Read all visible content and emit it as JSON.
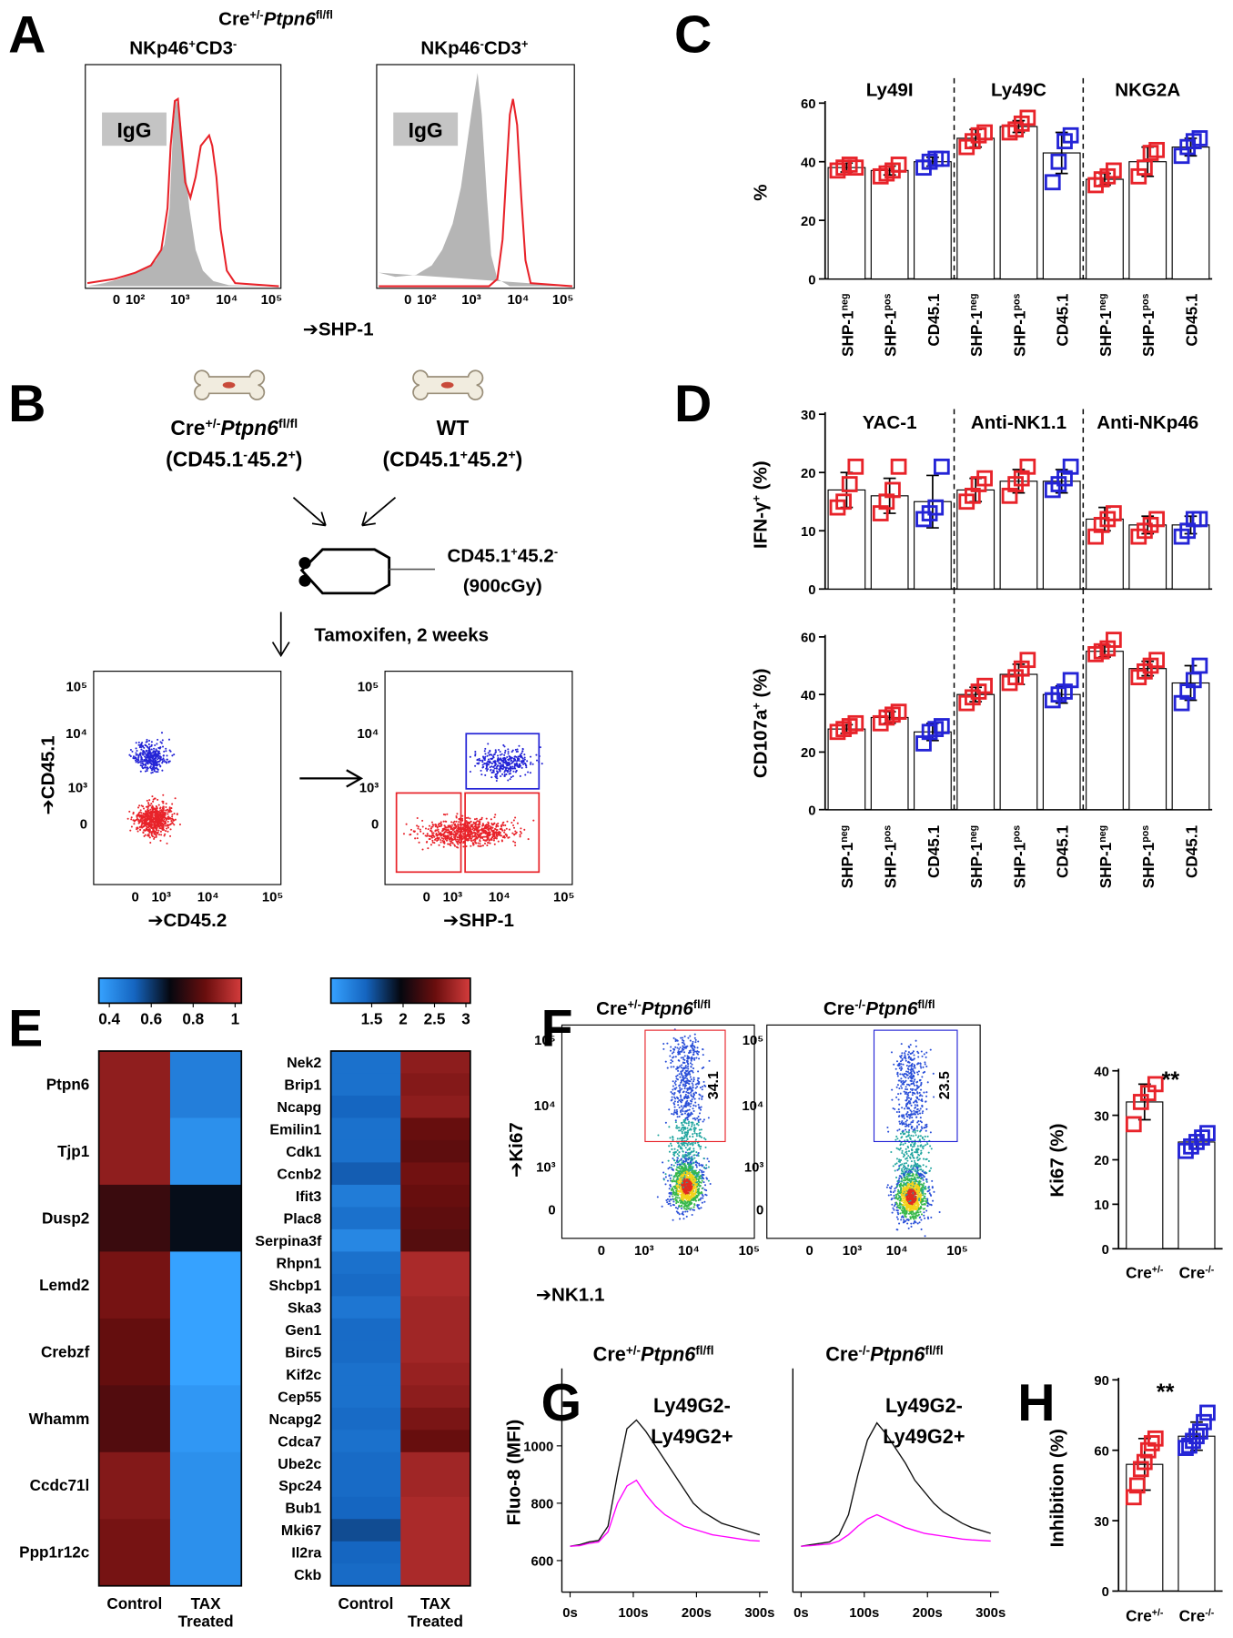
{
  "panels": {
    "letters": [
      "A",
      "B",
      "C",
      "D",
      "E",
      "F",
      "G",
      "H"
    ],
    "A": {
      "genotype": [
        {
          "text": "Cre"
        },
        {
          "text": "+/-",
          "sup": true
        },
        {
          "text": "Ptpn6",
          "it": true
        },
        {
          "text": "fl/fl",
          "sup": true
        }
      ],
      "titles": [
        [
          {
            "text": "NKp46"
          },
          {
            "text": "+",
            "sup": true
          },
          {
            "text": "CD3"
          },
          {
            "text": "-",
            "sup": true
          }
        ],
        [
          {
            "text": "NKp46"
          },
          {
            "text": "-",
            "sup": true
          },
          {
            "text": "CD3"
          },
          {
            "text": "+",
            "sup": true
          }
        ]
      ],
      "control": "IgG",
      "xticks": [
        "0",
        "10²",
        "10³",
        "10⁴",
        "10⁵"
      ],
      "xlabel": "➔SHP-1"
    },
    "B": {
      "donor1": [
        {
          "text": "Cre"
        },
        {
          "text": "+/-",
          "sup": true
        },
        {
          "text": "Ptpn6",
          "it": true
        },
        {
          "text": "fl/fl",
          "sup": true
        }
      ],
      "donor1_cd": [
        {
          "text": "(CD45.1"
        },
        {
          "text": "-",
          "sup": true
        },
        {
          "text": "45.2"
        },
        {
          "text": "+",
          "sup": true
        },
        {
          "text": ")"
        }
      ],
      "donor2": "WT",
      "donor2_cd": [
        {
          "text": "(CD45.1"
        },
        {
          "text": "+",
          "sup": true
        },
        {
          "text": "45.2"
        },
        {
          "text": "+",
          "sup": true
        },
        {
          "text": ")"
        }
      ],
      "recipient": [
        {
          "text": "CD45.1"
        },
        {
          "text": "+",
          "sup": true
        },
        {
          "text": "45.2"
        },
        {
          "text": "-",
          "sup": true
        }
      ],
      "dose": "(900cGy)",
      "treatment": "Tamoxifen, 2 weeks",
      "yticks": [
        "10⁵",
        "10⁴",
        "10³",
        "0"
      ],
      "xticks": [
        "0",
        "10³",
        "10⁴",
        "10⁵"
      ],
      "ylabel": "➔CD45.1",
      "xlabels": [
        "➔CD45.2",
        "➔SHP-1"
      ]
    },
    "F": {
      "titles": [
        [
          {
            "text": "Cre"
          },
          {
            "text": "+/-",
            "sup": true
          },
          {
            "text": "Ptpn6",
            "it": true
          },
          {
            "text": "fl/fl",
            "sup": true
          }
        ],
        [
          {
            "text": "Cre"
          },
          {
            "text": "-/-",
            "sup": true
          },
          {
            "text": "Ptpn6",
            "it": true
          },
          {
            "text": "fl/fl",
            "sup": true
          }
        ]
      ],
      "gates": [
        34.1,
        23.5
      ],
      "yticks": [
        "10⁵",
        "10⁴",
        "10³",
        "0"
      ],
      "xticks": [
        "0",
        "10³",
        "10⁴",
        "10⁵"
      ],
      "ylabel": "➔Ki67",
      "xlabel": "➔NK1.1"
    }
  },
  "chart_data": [
    {
      "type": "dotbar",
      "groups": [
        "Ly49I",
        "Ly49C",
        "NKG2A"
      ],
      "categories": [
        [
          {
            "text": "SHP-1"
          },
          {
            "text": "neg",
            "sup": true
          }
        ],
        [
          {
            "text": "SHP-1"
          },
          {
            "text": "pos",
            "sup": true
          }
        ],
        [
          {
            "text": "CD45.1"
          }
        ],
        [
          {
            "text": "SHP-1"
          },
          {
            "text": "neg",
            "sup": true
          }
        ],
        [
          {
            "text": "SHP-1"
          },
          {
            "text": "pos",
            "sup": true
          }
        ],
        [
          {
            "text": "CD45.1"
          }
        ],
        [
          {
            "text": "SHP-1"
          },
          {
            "text": "neg",
            "sup": true
          }
        ],
        [
          {
            "text": "SHP-1"
          },
          {
            "text": "pos",
            "sup": true
          }
        ],
        [
          {
            "text": "CD45.1"
          }
        ]
      ],
      "colors": [
        "#e8232a",
        "#e8232a",
        "#2424d6",
        "#e8232a",
        "#e8232a",
        "#2424d6",
        "#e8232a",
        "#e8232a",
        "#2424d6"
      ],
      "means": [
        38,
        37,
        40,
        48,
        52,
        43,
        34,
        40,
        45
      ],
      "errors": [
        1.5,
        1.5,
        1.5,
        3,
        2,
        7,
        2,
        5,
        3
      ],
      "points": [
        [
          37,
          38,
          39,
          38
        ],
        [
          35,
          36,
          37,
          39
        ],
        [
          38,
          40,
          41,
          41
        ],
        [
          45,
          47,
          49,
          50
        ],
        [
          50,
          51,
          53,
          55
        ],
        [
          33,
          40,
          47,
          49
        ],
        [
          32,
          34,
          35,
          37
        ],
        [
          35,
          38,
          43,
          44
        ],
        [
          42,
          45,
          47,
          48
        ]
      ],
      "ylabel": [
        {
          "text": "%"
        }
      ],
      "ylim": [
        0,
        60
      ],
      "yticks": [
        0,
        20,
        40,
        60
      ]
    },
    {
      "type": "dotbar",
      "groups": [
        "YAC-1",
        "Anti-NK1.1",
        "Anti-NKp46"
      ],
      "colors": [
        "#e8232a",
        "#e8232a",
        "#2424d6",
        "#e8232a",
        "#e8232a",
        "#2424d6",
        "#e8232a",
        "#e8232a",
        "#2424d6"
      ],
      "means": [
        17,
        16,
        15,
        17,
        18.5,
        18.5,
        12,
        11,
        11
      ],
      "errors": [
        3,
        3,
        4.5,
        2,
        2,
        2,
        2,
        1.5,
        1.5
      ],
      "points": [
        [
          14,
          15,
          18,
          21
        ],
        [
          13,
          15,
          17,
          21
        ],
        [
          12,
          13,
          14,
          21
        ],
        [
          15,
          16,
          18,
          19
        ],
        [
          16,
          18,
          19,
          21
        ],
        [
          17,
          18,
          19,
          21
        ],
        [
          9,
          11,
          12,
          13
        ],
        [
          9,
          10,
          11,
          12
        ],
        [
          9,
          10,
          12,
          12
        ]
      ],
      "ylabel": [
        {
          "text": "IFN-γ"
        },
        {
          "text": "+",
          "sup": true
        },
        {
          "text": " (%)"
        }
      ],
      "ylim": [
        0,
        30
      ],
      "yticks": [
        0,
        10,
        20,
        30
      ]
    },
    {
      "type": "dotbar",
      "categories": [
        [
          {
            "text": "SHP-1"
          },
          {
            "text": "neg",
            "sup": true
          }
        ],
        [
          {
            "text": "SHP-1"
          },
          {
            "text": "pos",
            "sup": true
          }
        ],
        [
          {
            "text": "CD45.1"
          }
        ],
        [
          {
            "text": "SHP-1"
          },
          {
            "text": "neg",
            "sup": true
          }
        ],
        [
          {
            "text": "SHP-1"
          },
          {
            "text": "pos",
            "sup": true
          }
        ],
        [
          {
            "text": "CD45.1"
          }
        ],
        [
          {
            "text": "SHP-1"
          },
          {
            "text": "neg",
            "sup": true
          }
        ],
        [
          {
            "text": "SHP-1"
          },
          {
            "text": "pos",
            "sup": true
          }
        ],
        [
          {
            "text": "CD45.1"
          }
        ]
      ],
      "colors": [
        "#e8232a",
        "#e8232a",
        "#2424d6",
        "#e8232a",
        "#e8232a",
        "#2424d6",
        "#e8232a",
        "#e8232a",
        "#2424d6"
      ],
      "means": [
        28,
        32,
        27,
        40,
        47,
        40,
        55,
        49,
        44
      ],
      "errors": [
        1.5,
        2,
        3,
        2.5,
        3.5,
        3,
        2,
        2.5,
        6
      ],
      "points": [
        [
          27,
          28,
          29,
          30
        ],
        [
          30,
          32,
          33,
          34
        ],
        [
          23,
          27,
          28,
          29
        ],
        [
          37,
          39,
          41,
          43
        ],
        [
          44,
          46,
          49,
          52
        ],
        [
          38,
          40,
          41,
          45
        ],
        [
          54,
          55,
          56,
          59
        ],
        [
          46,
          48,
          50,
          52
        ],
        [
          37,
          41,
          45,
          50
        ]
      ],
      "ylabel": [
        {
          "text": "CD107a"
        },
        {
          "text": "+",
          "sup": true
        },
        {
          "text": " (%)"
        }
      ],
      "ylim": [
        0,
        60
      ],
      "yticks": [
        0,
        20,
        40,
        60
      ]
    },
    {
      "type": "dotbar",
      "categories": [
        [
          {
            "text": "Cre"
          },
          {
            "text": "+/-",
            "sup": true
          }
        ],
        [
          {
            "text": "Cre"
          },
          {
            "text": "-/-",
            "sup": true
          }
        ]
      ],
      "colors": [
        "#e8232a",
        "#2424d6"
      ],
      "means": [
        33,
        24
      ],
      "errors": [
        4,
        1.5
      ],
      "points": [
        [
          28,
          33,
          35,
          37
        ],
        [
          22,
          23,
          24,
          25,
          26
        ]
      ],
      "ylabel": [
        {
          "text": "Ki67 (%)"
        }
      ],
      "annotation": "**",
      "ylim": [
        0,
        40
      ],
      "yticks": [
        0,
        10,
        20,
        30,
        40
      ]
    },
    {
      "type": "dotbar",
      "categories": [
        [
          {
            "text": "Cre"
          },
          {
            "text": "+/-",
            "sup": true
          }
        ],
        [
          {
            "text": "Cre"
          },
          {
            "text": "-/-",
            "sup": true
          }
        ]
      ],
      "colors": [
        "#e8232a",
        "#2424d6"
      ],
      "means": [
        54,
        66
      ],
      "errors": [
        11,
        6
      ],
      "points": [
        [
          40,
          45,
          52,
          55,
          60,
          63,
          65
        ],
        [
          61,
          62,
          64,
          66,
          68,
          72,
          76
        ]
      ],
      "ylabel": [
        {
          "text": "Inhibition (%)"
        }
      ],
      "annotation": "**",
      "ylim": [
        0,
        90
      ],
      "yticks": [
        0,
        30,
        60,
        90
      ]
    },
    {
      "type": "line",
      "title": [
        {
          "text": "Cre"
        },
        {
          "text": "+/-",
          "sup": true
        },
        {
          "text": "Ptpn6",
          "it": true
        },
        {
          "text": "fl/fl",
          "sup": true
        }
      ],
      "title_color": "#e8232a",
      "x": [
        0,
        15,
        30,
        45,
        60,
        75,
        90,
        105,
        120,
        135,
        150,
        165,
        180,
        195,
        210,
        225,
        240,
        255,
        270,
        285,
        300
      ],
      "series": [
        {
          "name": "Ly49G2-",
          "color": "#111111",
          "values": [
            650,
            655,
            665,
            670,
            720,
            900,
            1060,
            1090,
            1050,
            1000,
            950,
            900,
            850,
            800,
            770,
            750,
            730,
            720,
            710,
            700,
            690
          ]
        },
        {
          "name": "Ly49G2+",
          "color": "#ff00ff",
          "values": [
            650,
            652,
            660,
            665,
            700,
            800,
            860,
            880,
            830,
            790,
            760,
            740,
            720,
            710,
            700,
            690,
            685,
            680,
            675,
            670,
            668
          ]
        }
      ],
      "ylabel": [
        {
          "text": "Fluo-8 (MFI)"
        }
      ],
      "xlim": [
        -13,
        313
      ],
      "ylim": [
        490,
        1270
      ],
      "xticks": [
        {
          "value": 0,
          "label": "0s"
        },
        {
          "value": 100,
          "label": "100s"
        },
        {
          "value": 200,
          "label": "200s"
        },
        {
          "value": 300,
          "label": "300s"
        }
      ],
      "yticks": [
        600,
        800,
        1000
      ]
    },
    {
      "type": "line",
      "title": [
        {
          "text": "Cre"
        },
        {
          "text": "-/-",
          "sup": true
        },
        {
          "text": "Ptpn6",
          "it": true
        },
        {
          "text": "fl/fl",
          "sup": true
        }
      ],
      "title_color": "#2424d6",
      "x": [
        0,
        15,
        30,
        45,
        60,
        75,
        90,
        105,
        120,
        135,
        150,
        165,
        180,
        195,
        210,
        225,
        240,
        255,
        270,
        285,
        300
      ],
      "series": [
        {
          "name": "Ly49G2-",
          "color": "#111111",
          "values": [
            650,
            655,
            660,
            665,
            690,
            760,
            900,
            1020,
            1080,
            1040,
            990,
            940,
            880,
            840,
            800,
            770,
            750,
            730,
            715,
            705,
            695
          ]
        },
        {
          "name": "Ly49G2+",
          "color": "#ff00ff",
          "values": [
            650,
            652,
            655,
            658,
            668,
            690,
            720,
            745,
            760,
            745,
            730,
            715,
            705,
            695,
            690,
            685,
            680,
            675,
            672,
            670,
            668
          ]
        }
      ],
      "xlim": [
        -13,
        313
      ],
      "ylim": [
        490,
        1270
      ],
      "xticks": [
        {
          "value": 0,
          "label": "0s"
        },
        {
          "value": 100,
          "label": "100s"
        },
        {
          "value": 200,
          "label": "200s"
        },
        {
          "value": 300,
          "label": "300s"
        }
      ]
    },
    {
      "type": "heatmap",
      "rows": [
        "Ptpn6",
        "Tjp1",
        "Dusp2",
        "Lemd2",
        "Crebzf",
        "Whamm",
        "Ccdc71l",
        "Ppp1r12c"
      ],
      "columns": [
        [
          "Control"
        ],
        [
          "TAX",
          "Treated"
        ]
      ],
      "values": [
        [
          0.92,
          0.45
        ],
        [
          0.92,
          0.4
        ],
        [
          0.78,
          0.68
        ],
        [
          0.88,
          0.3
        ],
        [
          0.85,
          0.35
        ],
        [
          0.82,
          0.38
        ],
        [
          0.9,
          0.4
        ],
        [
          0.88,
          0.4
        ]
      ],
      "colors": [
        "#36a2ff",
        "#1565c0",
        "#05070f",
        "#6a0e0e",
        "#d43c3c"
      ],
      "clim": [
        0.35,
        1.03
      ],
      "cticks": [
        0.4,
        0.6,
        0.8,
        1.0
      ]
    },
    {
      "type": "heatmap",
      "rows": [
        "Nek2",
        "Brip1",
        "Ncapg",
        "Emilin1",
        "Cdk1",
        "Ccnb2",
        "Ifit3",
        "Plac8",
        "Serpina3f",
        "Rhpn1",
        "Shcbp1",
        "Ska3",
        "Gen1",
        "Birc5",
        "Kif2c",
        "Cep55",
        "Ncapg2",
        "Cdca7",
        "Ube2c",
        "Spc24",
        "Bub1",
        "Mki67",
        "Il2ra",
        "Ckb"
      ],
      "columns": [
        [
          "Control"
        ],
        [
          "TAX",
          "Treated"
        ]
      ],
      "values": [
        [
          1.3,
          2.7
        ],
        [
          1.3,
          2.65
        ],
        [
          1.4,
          2.7
        ],
        [
          1.3,
          2.5
        ],
        [
          1.3,
          2.45
        ],
        [
          1.45,
          2.55
        ],
        [
          1.2,
          2.5
        ],
        [
          1.3,
          2.45
        ],
        [
          1.1,
          2.4
        ],
        [
          1.3,
          2.85
        ],
        [
          1.35,
          2.85
        ],
        [
          1.25,
          2.8
        ],
        [
          1.35,
          2.8
        ],
        [
          1.35,
          2.8
        ],
        [
          1.3,
          2.75
        ],
        [
          1.3,
          2.7
        ],
        [
          1.35,
          2.6
        ],
        [
          1.3,
          2.5
        ],
        [
          1.35,
          2.8
        ],
        [
          1.35,
          2.8
        ],
        [
          1.4,
          2.85
        ],
        [
          1.55,
          2.85
        ],
        [
          1.4,
          2.85
        ],
        [
          1.35,
          2.85
        ]
      ],
      "colors": [
        "#36a2ff",
        "#1565c0",
        "#05070f",
        "#6a0e0e",
        "#d43c3c"
      ],
      "clim": [
        0.85,
        3.07
      ],
      "cticks": [
        1.5,
        2.0,
        2.5,
        3.0
      ]
    }
  ]
}
